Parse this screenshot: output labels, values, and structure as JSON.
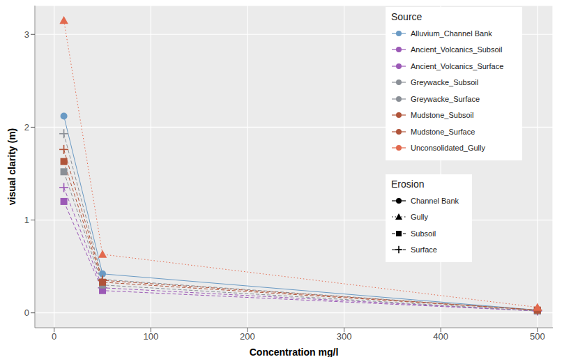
{
  "chart_data": {
    "type": "line",
    "x_label": "Concentration mg/l",
    "y_label": "visual clarity (m)",
    "x": [
      10,
      50,
      500
    ],
    "xlim": [
      -20,
      516
    ],
    "xticks": [
      0,
      100,
      200,
      300,
      400,
      500
    ],
    "ylim": [
      -0.16,
      3.31
    ],
    "yticks": [
      0,
      1,
      2,
      3
    ],
    "grid": true,
    "legend": "upper right",
    "source_legend_title": "Source",
    "series": [
      {
        "name": "Alluvium_Channel Bank",
        "color": "#6A9AC4",
        "marker": "circle",
        "line_style": "solid",
        "values": [
          2.12,
          0.42,
          0.03
        ]
      },
      {
        "name": "Ancient_Volcanics_Subsoil",
        "color": "#9B59B6",
        "marker": "square",
        "line_style": "dashed",
        "values": [
          1.2,
          0.24,
          0.02
        ]
      },
      {
        "name": "Ancient_Volcanics_Surface",
        "color": "#9B59B6",
        "marker": "cross",
        "line_style": "dashed",
        "values": [
          1.35,
          0.27,
          0.02
        ]
      },
      {
        "name": "Greywacke_Subsoil",
        "color": "#8A8F96",
        "marker": "square",
        "line_style": "dashed",
        "values": [
          1.52,
          0.3,
          0.02
        ]
      },
      {
        "name": "Greywacke_Surface",
        "color": "#8A8F96",
        "marker": "cross",
        "line_style": "dashed",
        "values": [
          1.93,
          0.36,
          0.03
        ]
      },
      {
        "name": "Mudstone_Subsoil",
        "color": "#B0543A",
        "marker": "square",
        "line_style": "dashed",
        "values": [
          1.63,
          0.33,
          0.03
        ]
      },
      {
        "name": "Mudstone_Surface",
        "color": "#B0543A",
        "marker": "cross",
        "line_style": "dashed",
        "values": [
          1.76,
          0.35,
          0.03
        ]
      },
      {
        "name": "Unconsolidated_Gully",
        "color": "#E2694E",
        "marker": "triangle",
        "line_style": "dotted",
        "values": [
          3.15,
          0.63,
          0.06
        ]
      }
    ],
    "erosion_legend": {
      "title": "Erosion",
      "entries": [
        {
          "name": "Channel Bank",
          "marker": "circle",
          "line_style": "solid"
        },
        {
          "name": "Gully",
          "marker": "triangle",
          "line_style": "dotted"
        },
        {
          "name": "Subsoil",
          "marker": "square",
          "line_style": "dashed"
        },
        {
          "name": "Surface",
          "marker": "cross",
          "line_style": "dashed"
        }
      ]
    }
  }
}
